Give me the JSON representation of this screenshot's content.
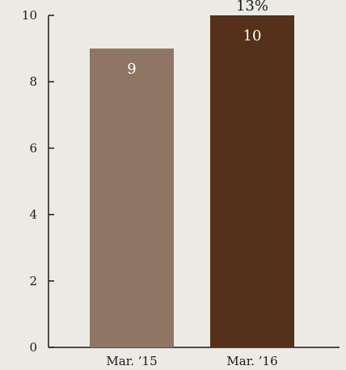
{
  "chart_data": {
    "type": "bar",
    "categories": [
      "Mar. ’15",
      "Mar. ’16"
    ],
    "values": [
      9,
      10
    ],
    "data_labels": [
      "9",
      "10"
    ],
    "colors": [
      "#8f7664",
      "#55301a"
    ],
    "ylim": [
      0,
      10
    ],
    "yticks": [
      "0",
      "2",
      "4",
      "6",
      "8",
      "10"
    ],
    "ytick_values": [
      0,
      2,
      4,
      6,
      8,
      10
    ],
    "annotation": "13%",
    "annotation_target_index": 1,
    "grid": false,
    "title": "",
    "xlabel": "",
    "ylabel": ""
  }
}
